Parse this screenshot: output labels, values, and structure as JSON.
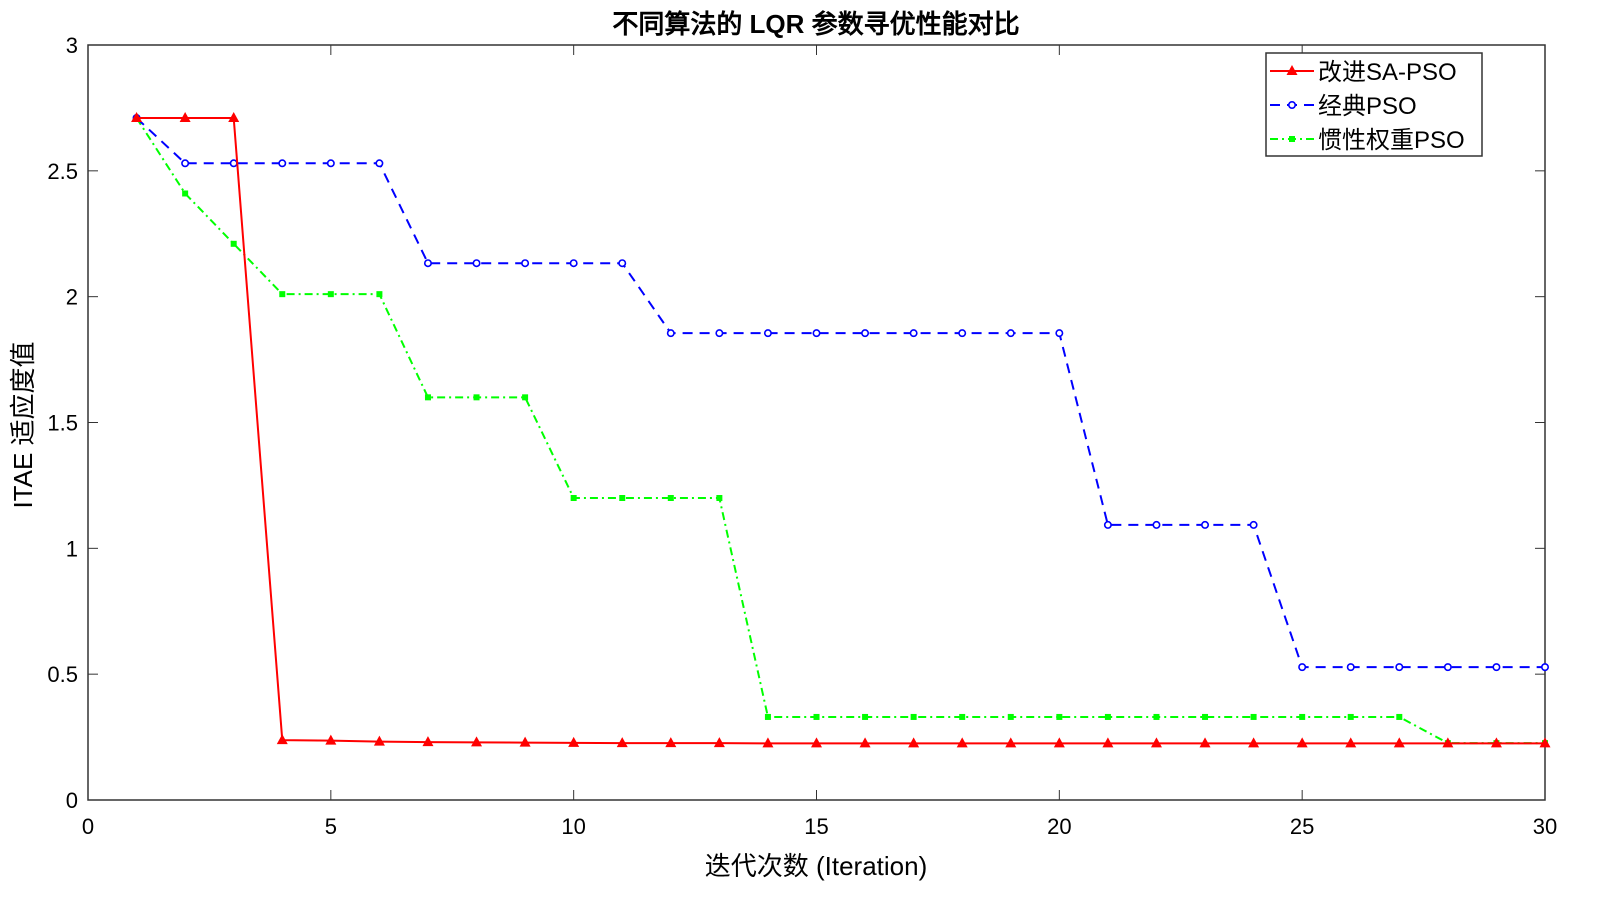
{
  "chart_data": {
    "type": "line",
    "title": "不同算法的 LQR 参数寻优性能对比",
    "xlabel": "迭代次数 (Iteration)",
    "ylabel": "ITAE 适应度值",
    "xlim": [
      0,
      30
    ],
    "ylim": [
      0,
      3
    ],
    "xticks": [
      0,
      5,
      10,
      15,
      20,
      25,
      30
    ],
    "yticks": [
      0,
      0.5,
      1,
      1.5,
      2,
      2.5,
      3
    ],
    "ytick_labels": [
      "0",
      "0.5",
      "1",
      "1.5",
      "2",
      "2.5",
      "3"
    ],
    "grid": false,
    "legend_position": "top-right",
    "x": [
      1,
      2,
      3,
      4,
      5,
      6,
      7,
      8,
      9,
      10,
      11,
      12,
      13,
      14,
      15,
      16,
      17,
      18,
      19,
      20,
      21,
      22,
      23,
      24,
      25,
      26,
      27,
      28,
      29,
      30
    ],
    "series": [
      {
        "name": "改进SA-PSO",
        "color": "#ff0000",
        "marker": "triangle",
        "dash": "solid",
        "values": [
          2.71,
          2.71,
          2.71,
          0.238,
          0.236,
          0.232,
          0.23,
          0.229,
          0.228,
          0.227,
          0.226,
          0.226,
          0.226,
          0.225,
          0.225,
          0.225,
          0.225,
          0.225,
          0.225,
          0.225,
          0.225,
          0.225,
          0.225,
          0.225,
          0.225,
          0.225,
          0.225,
          0.225,
          0.225,
          0.225
        ]
      },
      {
        "name": "经典PSO",
        "color": "#0000ff",
        "marker": "circle",
        "dash": "dashed",
        "values": [
          2.71,
          2.53,
          2.53,
          2.53,
          2.53,
          2.53,
          2.133,
          2.133,
          2.133,
          2.133,
          2.133,
          1.855,
          1.855,
          1.855,
          1.855,
          1.855,
          1.855,
          1.855,
          1.855,
          1.855,
          1.093,
          1.093,
          1.093,
          1.093,
          0.528,
          0.528,
          0.528,
          0.528,
          0.528,
          0.528
        ]
      },
      {
        "name": "惯性权重PSO",
        "color": "#00ff00",
        "marker": "square",
        "dash": "dashdot",
        "values": [
          2.71,
          2.41,
          2.21,
          2.01,
          2.01,
          2.01,
          1.6,
          1.6,
          1.6,
          1.2,
          1.2,
          1.2,
          1.2,
          0.33,
          0.33,
          0.33,
          0.33,
          0.33,
          0.33,
          0.33,
          0.33,
          0.33,
          0.33,
          0.33,
          0.33,
          0.33,
          0.33,
          0.226,
          0.226,
          0.226
        ]
      }
    ]
  }
}
